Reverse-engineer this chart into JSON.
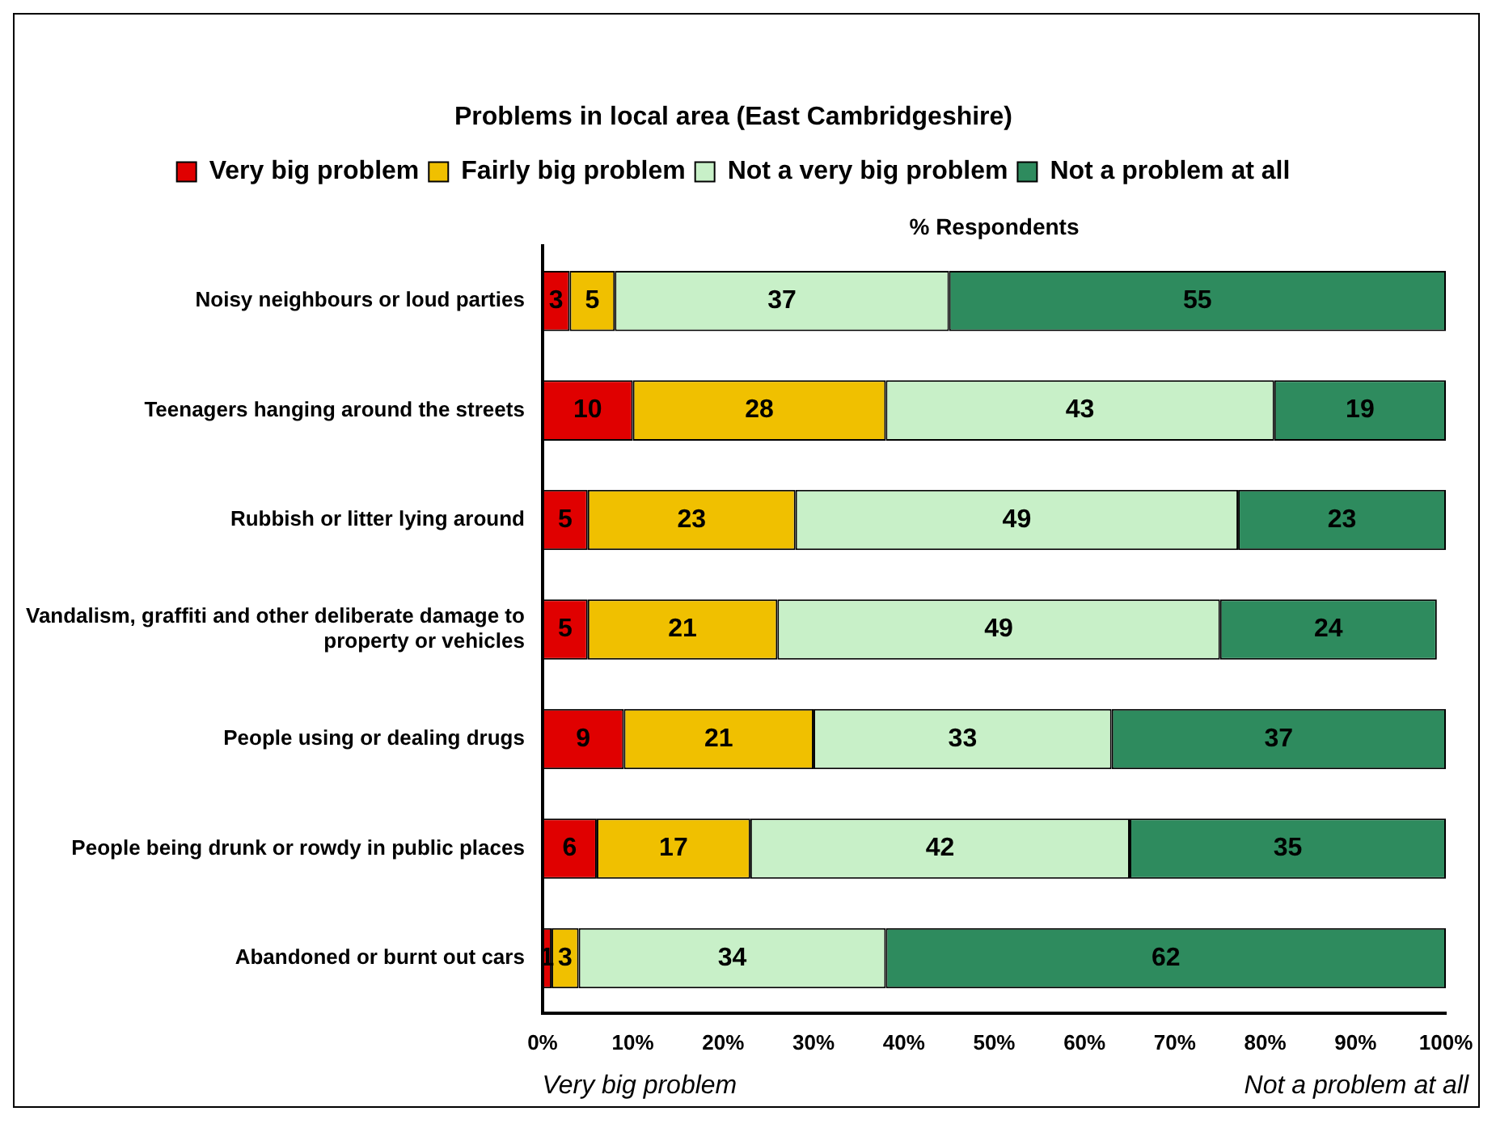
{
  "chart_data": {
    "type": "bar",
    "orientation": "horizontal",
    "stacked": true,
    "title": "Problems in local area (East Cambridgeshire)",
    "xlabel": "% Respondents",
    "categories": [
      "Noisy neighbours or loud parties",
      "Teenagers hanging around the streets",
      "Rubbish or litter lying around",
      "Vandalism, graffiti and other deliberate damage to property or vehicles",
      "People using or dealing drugs",
      "People being drunk or rowdy in public places",
      "Abandoned or burnt out cars"
    ],
    "series": [
      {
        "name": "Very big problem",
        "color": "#e00000",
        "values": [
          3,
          10,
          5,
          5,
          9,
          6,
          1
        ]
      },
      {
        "name": "Fairly big problem",
        "color": "#f0c000",
        "values": [
          5,
          28,
          23,
          21,
          21,
          17,
          3
        ]
      },
      {
        "name": "Not a very big problem",
        "color": "#c8f0c8",
        "values": [
          37,
          43,
          49,
          49,
          33,
          42,
          34
        ]
      },
      {
        "name": "Not a problem at all",
        "color": "#2e8b5e",
        "values": [
          55,
          19,
          23,
          24,
          37,
          35,
          62
        ]
      }
    ],
    "xlim": [
      0,
      100
    ],
    "xticks": [
      {
        "value": 0,
        "label": "0%"
      },
      {
        "value": 10,
        "label": "10%"
      },
      {
        "value": 20,
        "label": "20%"
      },
      {
        "value": 30,
        "label": "30%"
      },
      {
        "value": 40,
        "label": "40%"
      },
      {
        "value": 50,
        "label": "50%"
      },
      {
        "value": 60,
        "label": "60%"
      },
      {
        "value": 70,
        "label": "70%"
      },
      {
        "value": 80,
        "label": "80%"
      },
      {
        "value": 90,
        "label": "90%"
      },
      {
        "value": 100,
        "label": "100%"
      }
    ],
    "data_labels": true,
    "grid": false,
    "legend": "top",
    "annotations": [
      "Very big problem",
      "Not a problem at all"
    ]
  }
}
